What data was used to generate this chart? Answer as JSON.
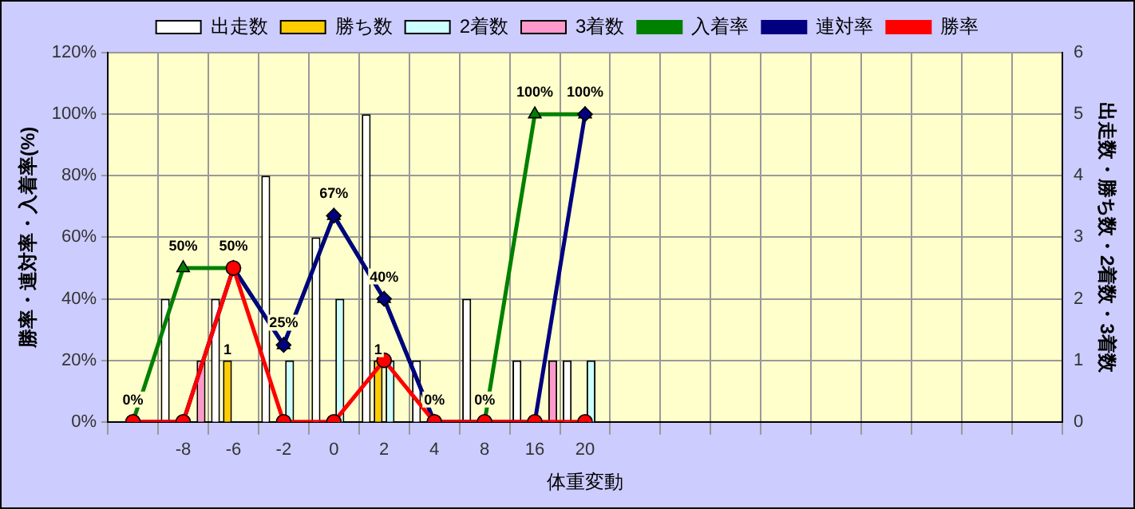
{
  "chart_data": {
    "type": "bar",
    "xlabel": "体重変動",
    "ylabel": "勝率・連対率・入着率(%)",
    "y2label": "出走数・勝ち数・2着数・3着数",
    "categories": [
      null,
      "-8",
      "-6",
      "-2",
      "0",
      "2",
      "4",
      "8",
      "16",
      "20",
      null,
      null,
      null,
      null,
      null,
      null,
      null,
      null,
      null
    ],
    "series": [
      {
        "name": "出走数",
        "axis": "y2",
        "color": "#ffffff",
        "values": [
          0,
          2,
          2,
          4,
          3,
          5,
          1,
          2,
          1,
          1,
          null,
          null,
          null,
          null,
          null,
          null,
          null,
          null,
          null
        ]
      },
      {
        "name": "勝ち数",
        "axis": "y2",
        "color": "#ffcc00",
        "values": [
          0,
          0,
          1,
          0,
          0,
          1,
          0,
          0,
          0,
          0,
          null,
          null,
          null,
          null,
          null,
          null,
          null,
          null,
          null
        ],
        "value_labels": [
          null,
          null,
          "1",
          null,
          null,
          "1",
          null,
          null,
          null,
          null,
          null,
          null,
          null,
          null,
          null,
          null,
          null,
          null,
          null
        ]
      },
      {
        "name": "2着数",
        "axis": "y2",
        "color": "#ccffff",
        "values": [
          0,
          0,
          0,
          1,
          2,
          1,
          0,
          0,
          0,
          1,
          null,
          null,
          null,
          null,
          null,
          null,
          null,
          null,
          null
        ]
      },
      {
        "name": "3着数",
        "axis": "y2",
        "color": "#ff99cc",
        "values": [
          0,
          1,
          0,
          0,
          0,
          0,
          0,
          0,
          1,
          0,
          null,
          null,
          null,
          null,
          null,
          null,
          null,
          null,
          null
        ]
      },
      {
        "name": "入着率",
        "type": "line",
        "color": "#008000",
        "marker": "triangle",
        "values": [
          0,
          50,
          50,
          25,
          67,
          40,
          0,
          0,
          100,
          100,
          null,
          null,
          null,
          null,
          null,
          null,
          null,
          null,
          null
        ],
        "value_labels": [
          "0%",
          "50%",
          "50%",
          "25%",
          "67%",
          "40%",
          "0%",
          "0%",
          "100%",
          "100%",
          null,
          null,
          null,
          null,
          null,
          null,
          null,
          null,
          null
        ]
      },
      {
        "name": "連対率",
        "type": "line",
        "color": "#000080",
        "marker": "diamond",
        "values": [
          0,
          0,
          50,
          25,
          67,
          40,
          0,
          0,
          0,
          100,
          null,
          null,
          null,
          null,
          null,
          null,
          null,
          null,
          null
        ]
      },
      {
        "name": "勝率",
        "type": "line",
        "color": "#ff0000",
        "marker": "circle",
        "values": [
          0,
          0,
          50,
          0,
          0,
          20,
          0,
          0,
          0,
          0,
          null,
          null,
          null,
          null,
          null,
          null,
          null,
          null,
          null
        ]
      }
    ],
    "ylim": [
      0,
      120
    ],
    "yticks": [
      {
        "value": 0,
        "label": "0%"
      },
      {
        "value": 20,
        "label": "20%"
      },
      {
        "value": 40,
        "label": "40%"
      },
      {
        "value": 60,
        "label": "60%"
      },
      {
        "value": 80,
        "label": "80%"
      },
      {
        "value": 100,
        "label": "100%"
      },
      {
        "value": 120,
        "label": "120%"
      }
    ],
    "y2lim": [
      0,
      6
    ],
    "y2ticks": [
      0,
      1,
      2,
      3,
      4,
      5,
      6
    ],
    "grid": true,
    "legend": "top"
  }
}
